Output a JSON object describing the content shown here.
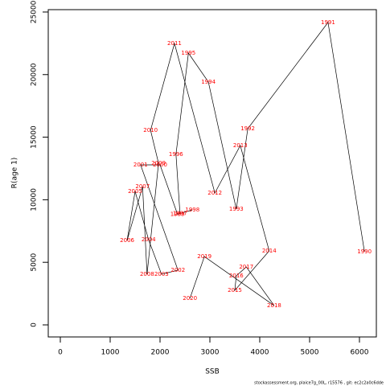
{
  "chart_data": {
    "type": "line",
    "xlabel": "SSB",
    "ylabel": "R(age 1)",
    "footer": "stockassessment.org, plaice7g_00L, r15576 , git: ec2c2a0c6dde",
    "point_labels": [
      "1990",
      "1991",
      "1992",
      "1993",
      "1994",
      "1995",
      "1996",
      "1997",
      "1998",
      "1999",
      "2000",
      "2001",
      "2002",
      "2003",
      "2004",
      "2005",
      "2006",
      "2007",
      "2008",
      "2009",
      "2010",
      "2011",
      "2012",
      "2013",
      "2014",
      "2015",
      "2016",
      "2017",
      "2018",
      "2019",
      "2020"
    ],
    "x": [
      6100,
      5370,
      3760,
      3530,
      2970,
      2570,
      2320,
      2400,
      2650,
      2350,
      2000,
      1610,
      2360,
      2030,
      1770,
      1500,
      1340,
      1650,
      1740,
      1970,
      1810,
      2290,
      3100,
      3610,
      4190,
      3500,
      3530,
      3730,
      4290,
      2890,
      2600
    ],
    "values": [
      5850,
      24170,
      15680,
      9250,
      19410,
      21720,
      13630,
      8900,
      9190,
      8850,
      12790,
      12790,
      4370,
      4050,
      6810,
      10670,
      6750,
      11050,
      4050,
      12920,
      15550,
      22490,
      10540,
      14330,
      5910,
      2760,
      3920,
      4630,
      1540,
      5460,
      2120
    ],
    "line_color": "#000000",
    "label_color": "#ff0000",
    "xlim": [
      -242,
      6339
    ],
    "ylim": [
      -964,
      25190
    ],
    "xticks": [
      0,
      1000,
      2000,
      3000,
      4000,
      5000,
      6000
    ],
    "yticks": [
      0,
      5000,
      10000,
      15000,
      20000,
      25000
    ]
  }
}
